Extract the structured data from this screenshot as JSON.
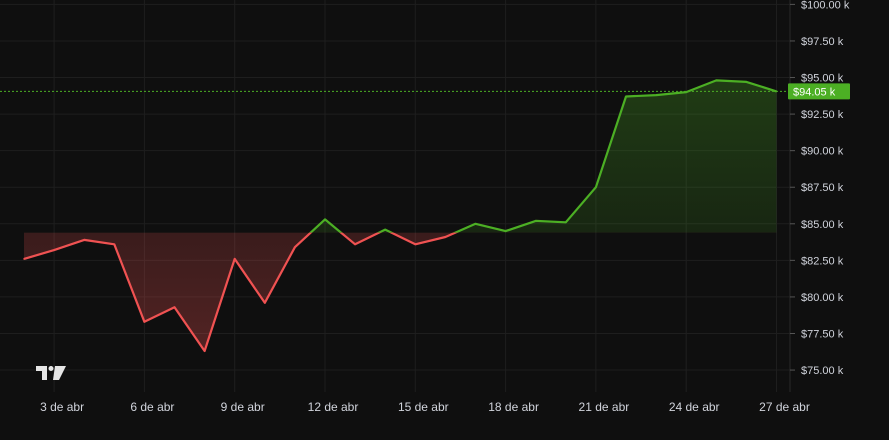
{
  "chart_data": {
    "type": "area",
    "x": [
      "2 de abr",
      "3 de abr",
      "4 de abr",
      "5 de abr",
      "6 de abr",
      "7 de abr",
      "8 de abr",
      "9 de abr",
      "10 de abr",
      "11 de abr",
      "12 de abr",
      "13 de abr",
      "14 de abr",
      "15 de abr",
      "16 de abr",
      "17 de abr",
      "18 de abr",
      "19 de abr",
      "20 de abr",
      "21 de abr",
      "22 de abr",
      "23 de abr",
      "24 de abr",
      "25 de abr",
      "26 de abr",
      "27 de abr"
    ],
    "values": [
      82.6,
      83.2,
      83.9,
      83.6,
      78.3,
      79.3,
      76.3,
      82.6,
      79.6,
      83.4,
      85.3,
      83.6,
      84.6,
      83.6,
      84.1,
      85.0,
      84.5,
      85.2,
      85.1,
      87.5,
      93.7,
      93.8,
      94.0,
      94.8,
      94.7,
      94.05
    ],
    "baseline": 84.4,
    "ylim": [
      73.5,
      100.3
    ],
    "y_ticks": [
      75.0,
      77.5,
      80.0,
      82.5,
      85.0,
      87.5,
      90.0,
      92.5,
      95.0,
      97.5,
      100.0
    ],
    "y_tick_labels": [
      "$75.00 k",
      "$77.50 k",
      "$80.00 k",
      "$82.50 k",
      "$85.00 k",
      "$87.50 k",
      "$90.00 k",
      "$92.50 k",
      "$95.00 k",
      "$97.50 k",
      "$100.00 k"
    ],
    "x_tick_labels": [
      "3 de abr",
      "6 de abr",
      "9 de abr",
      "12 de abr",
      "15 de abr",
      "18 de abr",
      "21 de abr",
      "24 de abr",
      "27 de abr"
    ],
    "x_tick_indices": [
      1,
      4,
      7,
      10,
      13,
      16,
      19,
      22,
      25
    ],
    "last_value_label": "$94.05 k",
    "grid": true,
    "colors": {
      "up": "#4caf24",
      "down": "#f05252",
      "background": "#0f0f0f",
      "grid": "#1e1e1e",
      "text": "#d1d4dc"
    },
    "watermark": "TV"
  }
}
